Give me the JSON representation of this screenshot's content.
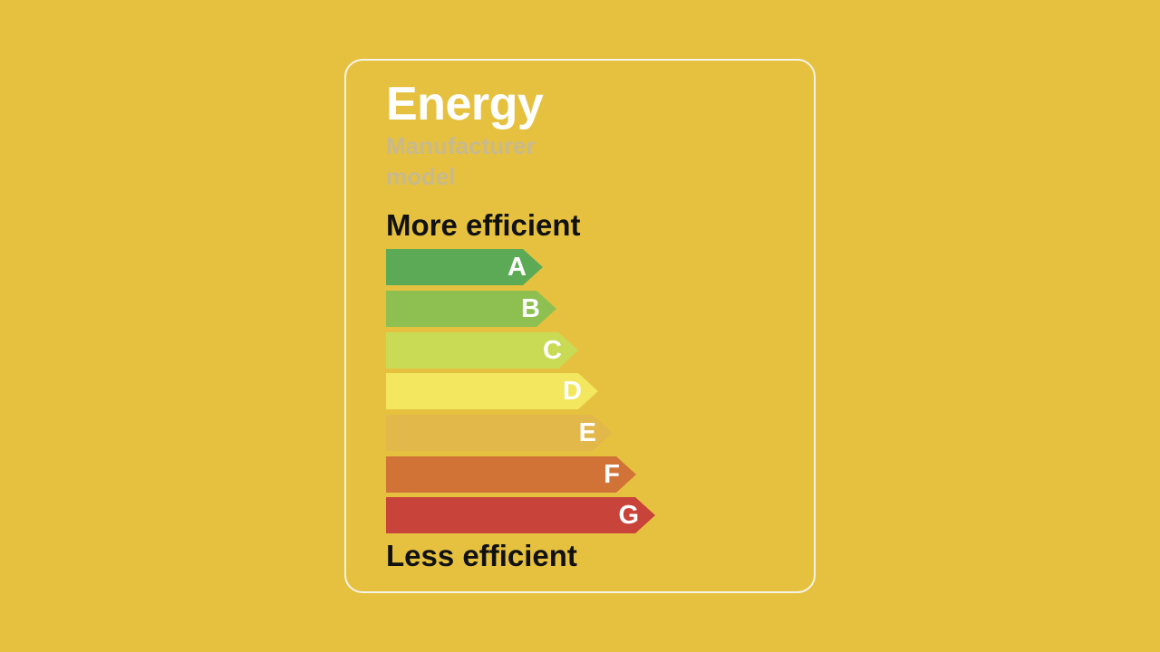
{
  "label": {
    "title": "Energy",
    "manufacturer": "Manufacturer",
    "model": "model",
    "top_label": "More efficient",
    "bottom_label": "Less efficient"
  },
  "classes": [
    {
      "letter": "A",
      "color": "#5DAA56"
    },
    {
      "letter": "B",
      "color": "#8DC050"
    },
    {
      "letter": "C",
      "color": "#C9DB55"
    },
    {
      "letter": "D",
      "color": "#F2E75E"
    },
    {
      "letter": "E",
      "color": "#E3B84A"
    },
    {
      "letter": "F",
      "color": "#D17337"
    },
    {
      "letter": "G",
      "color": "#C8433A"
    }
  ],
  "colors": {
    "background": "#E6C13F",
    "card_border": "#F6F3E8"
  }
}
